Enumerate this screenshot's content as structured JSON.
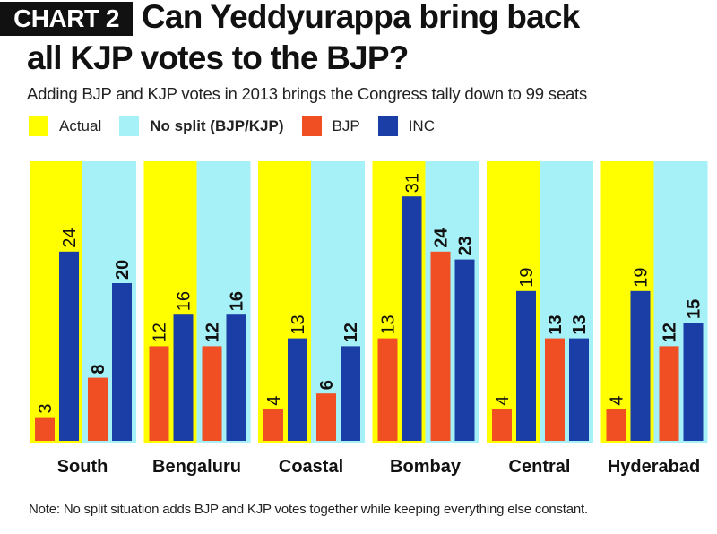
{
  "header": {
    "tag": "CHART 2",
    "title_line1": "Can Yeddyurappa bring back",
    "title_line2": "all KJP votes to the BJP?",
    "subtitle": "Adding BJP and KJP votes in 2013 brings the Congress tally down to 99 seats"
  },
  "legend": [
    {
      "label": "Actual",
      "color": "#ffff00",
      "bold": false
    },
    {
      "label": "No split (BJP/KJP)",
      "color": "#a6f0f7",
      "bold": true
    },
    {
      "label": "BJP",
      "color": "#f04e23",
      "bold": false
    },
    {
      "label": "INC",
      "color": "#1a3ea6",
      "bold": false
    }
  ],
  "chart_data": {
    "type": "bar",
    "title": "Can Yeddyurappa bring back all KJP votes to the BJP?",
    "subtitle": "Adding BJP and KJP votes in 2013 brings the Congress tally down to 99 seats",
    "categories": [
      "South",
      "Bengaluru",
      "Coastal",
      "Bombay",
      "Central",
      "Hyderabad"
    ],
    "scenarios": [
      "Actual",
      "No split (BJP/KJP)"
    ],
    "series": [
      {
        "name": "BJP",
        "scenario": "Actual",
        "values": [
          3,
          12,
          4,
          13,
          4,
          4
        ]
      },
      {
        "name": "INC",
        "scenario": "Actual",
        "values": [
          24,
          16,
          13,
          31,
          19,
          19
        ]
      },
      {
        "name": "BJP",
        "scenario": "No split (BJP/KJP)",
        "values": [
          8,
          12,
          6,
          24,
          13,
          12
        ]
      },
      {
        "name": "INC",
        "scenario": "No split (BJP/KJP)",
        "values": [
          20,
          16,
          12,
          23,
          13,
          15
        ]
      }
    ],
    "ylim": [
      0,
      35
    ],
    "colors": {
      "actual_bg": "#ffff00",
      "nosplit_bg": "#a6f0f7",
      "bjp": "#f04e23",
      "inc": "#1a3ea6"
    }
  },
  "note": "Note: No split situation adds BJP and KJP votes together while keeping everything else constant."
}
